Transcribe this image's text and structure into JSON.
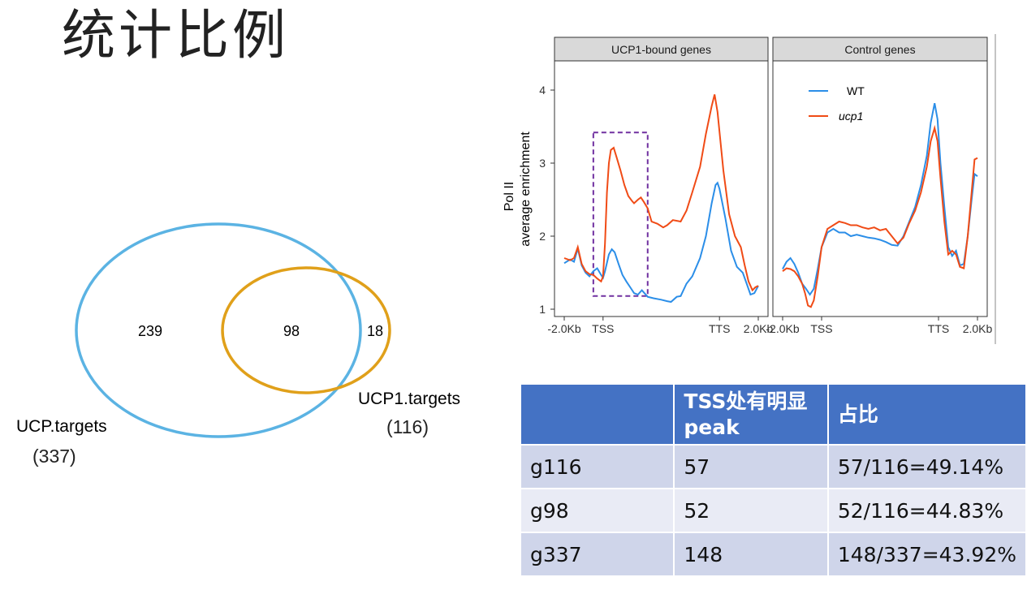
{
  "slide": {
    "title": "统计比例"
  },
  "venn": {
    "sets": [
      {
        "label": "UCP.targets",
        "count_label": "(337)",
        "total": 337,
        "only": 239,
        "color": "#5bb3e3"
      },
      {
        "label": "UCP1.targets",
        "count_label": "(116)",
        "total": 116,
        "only": 18,
        "color": "#e0a01a"
      }
    ],
    "overlap": 98
  },
  "chart_data": {
    "type": "line",
    "ylabel_lines": [
      "Pol II",
      "average enrichment"
    ],
    "ylim": [
      0.9,
      4.4
    ],
    "yticks": [
      1,
      2,
      3,
      4
    ],
    "xtick_labels": [
      "-2.0Kb",
      "TSS",
      "TTS",
      "2.0Kb"
    ],
    "xtick_positions": [
      0,
      2,
      8,
      10
    ],
    "legend": {
      "placement": "top-left of right panel",
      "entries": [
        {
          "name": "WT",
          "color": "#2b8ee8"
        },
        {
          "name": "ucp1",
          "color": "#f04b16",
          "italic": true
        }
      ]
    },
    "panels": [
      {
        "strip": "UCP1-bound genes",
        "highlight_box": {
          "x": [
            1.5,
            4.3
          ],
          "y": [
            1.18,
            3.42
          ],
          "color": "#7030a0"
        },
        "series": [
          {
            "name": "WT",
            "color": "#2b8ee8",
            "points": [
              [
                0,
                1.63
              ],
              [
                0.3,
                1.68
              ],
              [
                0.5,
                1.65
              ],
              [
                0.7,
                1.83
              ],
              [
                0.9,
                1.6
              ],
              [
                1.1,
                1.5
              ],
              [
                1.3,
                1.45
              ],
              [
                1.5,
                1.52
              ],
              [
                1.7,
                1.56
              ],
              [
                1.9,
                1.47
              ],
              [
                2.0,
                1.43
              ],
              [
                2.1,
                1.52
              ],
              [
                2.3,
                1.75
              ],
              [
                2.45,
                1.82
              ],
              [
                2.6,
                1.78
              ],
              [
                2.8,
                1.62
              ],
              [
                3.0,
                1.47
              ],
              [
                3.2,
                1.38
              ],
              [
                3.4,
                1.3
              ],
              [
                3.6,
                1.22
              ],
              [
                3.8,
                1.2
              ],
              [
                4.0,
                1.26
              ],
              [
                4.1,
                1.23
              ],
              [
                4.3,
                1.17
              ],
              [
                4.6,
                1.15
              ],
              [
                5.0,
                1.13
              ],
              [
                5.3,
                1.11
              ],
              [
                5.5,
                1.1
              ],
              [
                5.8,
                1.17
              ],
              [
                6.0,
                1.18
              ],
              [
                6.3,
                1.35
              ],
              [
                6.6,
                1.45
              ],
              [
                7.0,
                1.7
              ],
              [
                7.3,
                2.0
              ],
              [
                7.6,
                2.45
              ],
              [
                7.8,
                2.7
              ],
              [
                7.9,
                2.73
              ],
              [
                8.0,
                2.65
              ],
              [
                8.3,
                2.25
              ],
              [
                8.6,
                1.8
              ],
              [
                8.9,
                1.58
              ],
              [
                9.2,
                1.5
              ],
              [
                9.4,
                1.35
              ],
              [
                9.6,
                1.2
              ],
              [
                9.8,
                1.22
              ],
              [
                10.0,
                1.32
              ]
            ]
          },
          {
            "name": "ucp1",
            "color": "#f04b16",
            "points": [
              [
                0,
                1.7
              ],
              [
                0.3,
                1.67
              ],
              [
                0.5,
                1.7
              ],
              [
                0.7,
                1.85
              ],
              [
                0.9,
                1.62
              ],
              [
                1.1,
                1.52
              ],
              [
                1.3,
                1.48
              ],
              [
                1.5,
                1.47
              ],
              [
                1.7,
                1.42
              ],
              [
                1.9,
                1.38
              ],
              [
                2.0,
                1.45
              ],
              [
                2.1,
                1.9
              ],
              [
                2.2,
                2.6
              ],
              [
                2.3,
                3.0
              ],
              [
                2.4,
                3.18
              ],
              [
                2.55,
                3.21
              ],
              [
                2.7,
                3.08
              ],
              [
                2.9,
                2.9
              ],
              [
                3.1,
                2.7
              ],
              [
                3.3,
                2.55
              ],
              [
                3.5,
                2.48
              ],
              [
                3.6,
                2.45
              ],
              [
                3.8,
                2.5
              ],
              [
                3.95,
                2.53
              ],
              [
                4.1,
                2.47
              ],
              [
                4.3,
                2.38
              ],
              [
                4.5,
                2.2
              ],
              [
                4.8,
                2.17
              ],
              [
                5.1,
                2.12
              ],
              [
                5.3,
                2.15
              ],
              [
                5.6,
                2.22
              ],
              [
                6.0,
                2.2
              ],
              [
                6.3,
                2.35
              ],
              [
                6.6,
                2.6
              ],
              [
                7.0,
                2.95
              ],
              [
                7.3,
                3.4
              ],
              [
                7.6,
                3.78
              ],
              [
                7.75,
                3.94
              ],
              [
                7.9,
                3.7
              ],
              [
                8.2,
                2.9
              ],
              [
                8.5,
                2.3
              ],
              [
                8.8,
                2.0
              ],
              [
                9.1,
                1.85
              ],
              [
                9.3,
                1.6
              ],
              [
                9.5,
                1.38
              ],
              [
                9.7,
                1.26
              ],
              [
                9.85,
                1.3
              ],
              [
                10.0,
                1.32
              ]
            ]
          }
        ]
      },
      {
        "strip": "Control genes",
        "series": [
          {
            "name": "WT",
            "color": "#2b8ee8",
            "points": [
              [
                0,
                1.55
              ],
              [
                0.2,
                1.65
              ],
              [
                0.4,
                1.7
              ],
              [
                0.6,
                1.62
              ],
              [
                0.8,
                1.5
              ],
              [
                1.0,
                1.35
              ],
              [
                1.2,
                1.28
              ],
              [
                1.4,
                1.2
              ],
              [
                1.6,
                1.28
              ],
              [
                1.8,
                1.55
              ],
              [
                2.0,
                1.85
              ],
              [
                2.3,
                2.05
              ],
              [
                2.6,
                2.1
              ],
              [
                2.9,
                2.05
              ],
              [
                3.2,
                2.05
              ],
              [
                3.5,
                2.0
              ],
              [
                3.8,
                2.02
              ],
              [
                4.1,
                2.0
              ],
              [
                4.4,
                1.98
              ],
              [
                4.7,
                1.97
              ],
              [
                5.0,
                1.95
              ],
              [
                5.3,
                1.92
              ],
              [
                5.6,
                1.88
              ],
              [
                5.9,
                1.87
              ],
              [
                6.2,
                2.0
              ],
              [
                6.5,
                2.2
              ],
              [
                6.8,
                2.4
              ],
              [
                7.1,
                2.7
              ],
              [
                7.4,
                3.1
              ],
              [
                7.6,
                3.55
              ],
              [
                7.8,
                3.82
              ],
              [
                7.95,
                3.6
              ],
              [
                8.1,
                3.0
              ],
              [
                8.3,
                2.4
              ],
              [
                8.5,
                1.85
              ],
              [
                8.7,
                1.73
              ],
              [
                8.9,
                1.8
              ],
              [
                9.1,
                1.6
              ],
              [
                9.3,
                1.62
              ],
              [
                9.5,
                2.0
              ],
              [
                9.7,
                2.5
              ],
              [
                9.85,
                2.85
              ],
              [
                10.0,
                2.82
              ]
            ]
          },
          {
            "name": "ucp1",
            "color": "#f04b16",
            "points": [
              [
                0,
                1.52
              ],
              [
                0.2,
                1.56
              ],
              [
                0.4,
                1.55
              ],
              [
                0.6,
                1.52
              ],
              [
                0.8,
                1.45
              ],
              [
                1.0,
                1.35
              ],
              [
                1.15,
                1.22
              ],
              [
                1.3,
                1.05
              ],
              [
                1.45,
                1.03
              ],
              [
                1.6,
                1.12
              ],
              [
                1.8,
                1.45
              ],
              [
                2.0,
                1.85
              ],
              [
                2.3,
                2.1
              ],
              [
                2.6,
                2.15
              ],
              [
                2.9,
                2.2
              ],
              [
                3.2,
                2.18
              ],
              [
                3.5,
                2.15
              ],
              [
                3.8,
                2.15
              ],
              [
                4.1,
                2.12
              ],
              [
                4.4,
                2.1
              ],
              [
                4.7,
                2.12
              ],
              [
                5.0,
                2.08
              ],
              [
                5.3,
                2.1
              ],
              [
                5.6,
                2.0
              ],
              [
                5.9,
                1.9
              ],
              [
                6.2,
                1.98
              ],
              [
                6.5,
                2.18
              ],
              [
                6.8,
                2.35
              ],
              [
                7.1,
                2.6
              ],
              [
                7.4,
                2.95
              ],
              [
                7.6,
                3.3
              ],
              [
                7.8,
                3.48
              ],
              [
                7.95,
                3.3
              ],
              [
                8.1,
                2.8
              ],
              [
                8.3,
                2.2
              ],
              [
                8.5,
                1.75
              ],
              [
                8.7,
                1.8
              ],
              [
                8.9,
                1.75
              ],
              [
                9.1,
                1.58
              ],
              [
                9.3,
                1.56
              ],
              [
                9.5,
                2.0
              ],
              [
                9.7,
                2.6
              ],
              [
                9.85,
                3.05
              ],
              [
                10.0,
                3.07
              ]
            ]
          }
        ]
      }
    ]
  },
  "table": {
    "headers": [
      "",
      "TSS处有明显peak",
      "占比"
    ],
    "rows": [
      [
        "g116",
        "57",
        "57/116=49.14%"
      ],
      [
        "g98",
        "52",
        "52/116=44.83%"
      ],
      [
        "g337",
        "148",
        "148/337=43.92%"
      ]
    ]
  }
}
